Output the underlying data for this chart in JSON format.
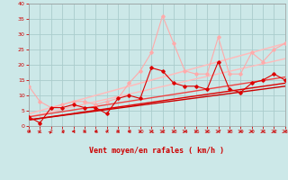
{
  "xlabel": "Vent moyen/en rafales ( km/h )",
  "bg_color": "#cce8e8",
  "grid_color": "#aacccc",
  "xlim": [
    0,
    23
  ],
  "ylim": [
    0,
    40
  ],
  "xticks": [
    0,
    1,
    2,
    3,
    4,
    5,
    6,
    7,
    8,
    9,
    10,
    11,
    12,
    13,
    14,
    15,
    16,
    17,
    18,
    19,
    20,
    21,
    22,
    23
  ],
  "yticks": [
    0,
    5,
    10,
    15,
    20,
    25,
    30,
    35,
    40
  ],
  "line_gust": {
    "x": [
      0,
      1,
      2,
      3,
      4,
      5,
      6,
      7,
      8,
      9,
      10,
      11,
      12,
      13,
      14,
      15,
      16,
      17,
      18,
      19,
      20,
      21,
      22,
      23
    ],
    "y": [
      13,
      8,
      6,
      7,
      8,
      8,
      7,
      8,
      9,
      14,
      18,
      24,
      36,
      27,
      18,
      17,
      17,
      29,
      17,
      17,
      24,
      21,
      25,
      27
    ],
    "color": "#ffaaaa",
    "lw": 0.8
  },
  "line_avg": {
    "x": [
      0,
      1,
      2,
      3,
      4,
      5,
      6,
      7,
      8,
      9,
      10,
      11,
      12,
      13,
      14,
      15,
      16,
      17,
      18,
      19,
      20,
      21,
      22,
      23
    ],
    "y": [
      3,
      1,
      6,
      6,
      7,
      6,
      6,
      4,
      9,
      10,
      9,
      19,
      18,
      14,
      13,
      13,
      12,
      21,
      12,
      11,
      14,
      15,
      17,
      15
    ],
    "color": "#dd0000",
    "lw": 0.8
  },
  "trend_lines": [
    {
      "x0": 0,
      "y0": 4,
      "x1": 23,
      "y1": 27,
      "color": "#ffbbbb",
      "lw": 1.1
    },
    {
      "x0": 0,
      "y0": 3,
      "x1": 23,
      "y1": 22,
      "color": "#ffbbbb",
      "lw": 1.0
    },
    {
      "x0": 0,
      "y0": 3,
      "x1": 23,
      "y1": 16,
      "color": "#ee4444",
      "lw": 1.0
    },
    {
      "x0": 0,
      "y0": 2,
      "x1": 23,
      "y1": 14,
      "color": "#dd0000",
      "lw": 1.0
    },
    {
      "x0": 0,
      "y0": 2,
      "x1": 23,
      "y1": 13,
      "color": "#cc0000",
      "lw": 1.0
    }
  ],
  "tick_color": "#cc0000",
  "label_color": "#cc0000",
  "tick_fontsize": 4.5,
  "xlabel_fontsize": 6
}
